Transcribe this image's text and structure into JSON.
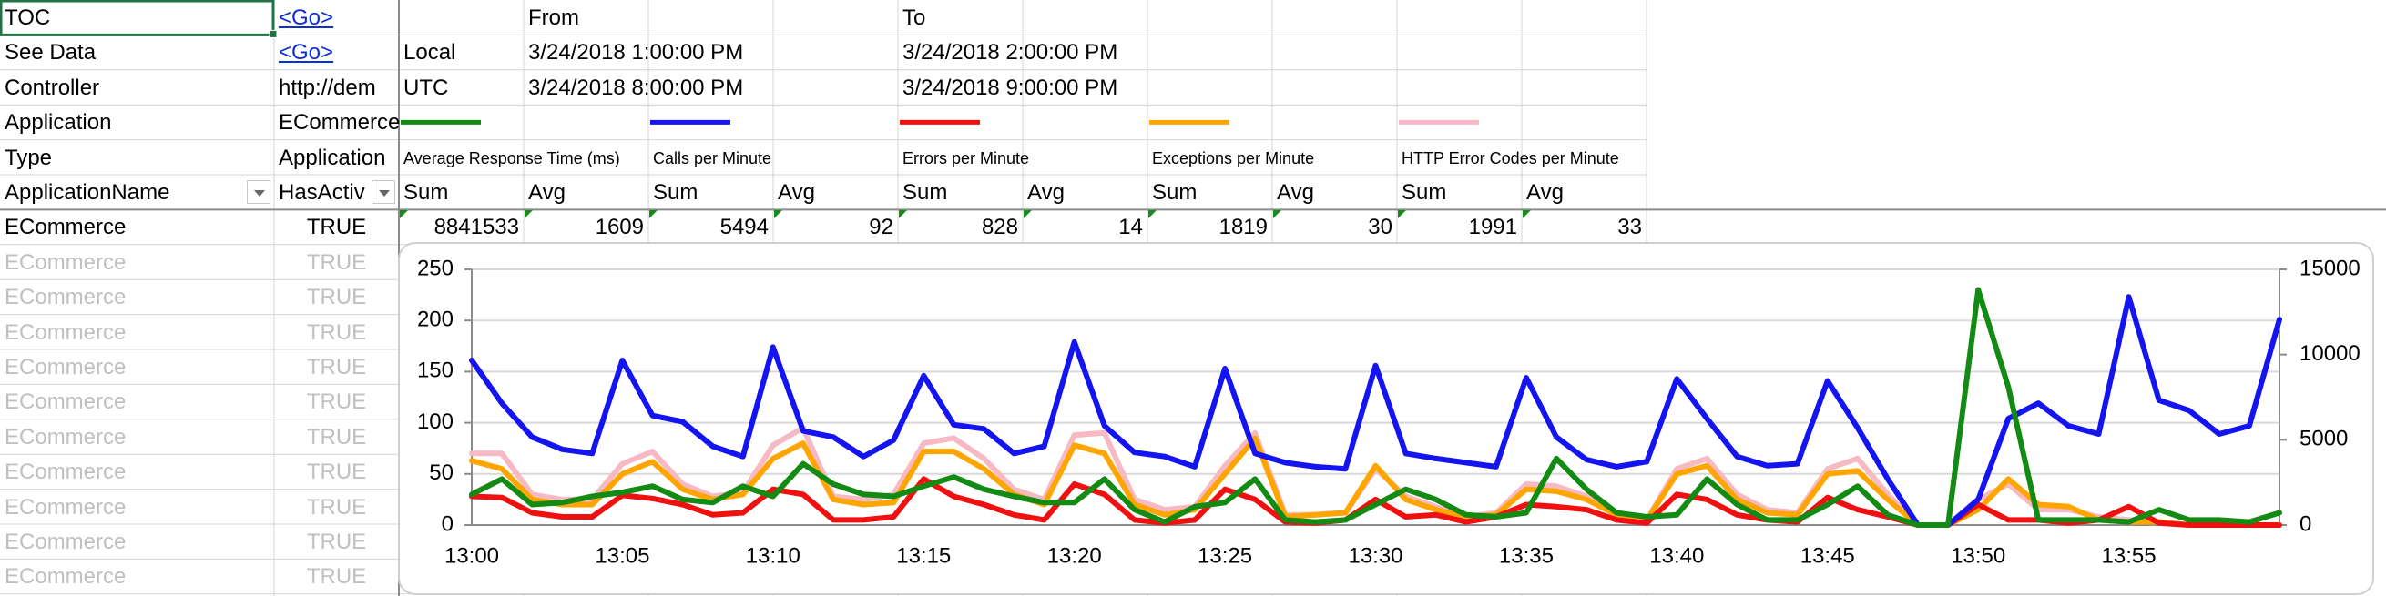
{
  "sheet": {
    "rows": [
      [
        "TOC",
        "<Go>",
        null,
        "From",
        null,
        null,
        "To"
      ],
      [
        "See Data",
        "<Go>",
        "Local",
        "3/24/2018 1:00:00 PM",
        null,
        null,
        "3/24/2018 2:00:00 PM"
      ],
      [
        "Controller",
        "http://dem",
        "UTC",
        "3/24/2018 8:00:00 PM",
        null,
        null,
        "3/24/2018 9:00:00 PM"
      ],
      [
        "Application",
        "ECommerce"
      ],
      [
        "Type",
        "Application"
      ],
      [
        "ApplicationName",
        "HasActiv",
        "Sum",
        "Avg",
        "Sum",
        "Avg",
        "Sum",
        "Avg",
        "Sum",
        "Avg",
        "Sum",
        "Avg"
      ],
      [
        "ECommerce",
        "TRUE",
        8841533,
        1609,
        5494,
        92,
        828,
        14,
        1819,
        30,
        1991,
        33
      ],
      [
        "ECommerce",
        "TRUE"
      ],
      [
        "ECommerce",
        "TRUE"
      ],
      [
        "ECommerce",
        "TRUE"
      ],
      [
        "ECommerce",
        "TRUE"
      ],
      [
        "ECommerce",
        "TRUE"
      ],
      [
        "ECommerce",
        "TRUE"
      ],
      [
        "ECommerce",
        "TRUE"
      ],
      [
        "ECommerce",
        "TRUE"
      ],
      [
        "ECommerce",
        "TRUE"
      ],
      [
        "ECommerce",
        "TRUE"
      ]
    ]
  },
  "chart_data": {
    "type": "line",
    "categories": [
      "13:00",
      null,
      null,
      null,
      null,
      "13:05",
      null,
      null,
      null,
      null,
      "13:10",
      null,
      null,
      null,
      null,
      "13:15",
      null,
      null,
      null,
      null,
      "13:20",
      null,
      null,
      null,
      null,
      "13:25",
      null,
      null,
      null,
      null,
      "13:30",
      null,
      null,
      null,
      null,
      "13:35",
      null,
      null,
      null,
      null,
      "13:40",
      null,
      null,
      null,
      null,
      "13:45",
      null,
      null,
      null,
      null,
      "13:50",
      null,
      null,
      null,
      null,
      "13:55",
      null,
      null,
      null,
      null,
      null
    ],
    "ylim": [
      0,
      250
    ],
    "yticks": [
      0,
      50,
      100,
      150,
      200,
      250
    ],
    "y2lim": [
      0,
      15000
    ],
    "y2ticks": [
      0,
      5000,
      10000,
      15000
    ],
    "grid": true,
    "series": [
      {
        "name": "Average Response Time (ms)",
        "color": "#138a13",
        "axis": "y2",
        "values": [
          1800,
          2700,
          1200,
          1320,
          1680,
          1920,
          2280,
          1500,
          1320,
          2280,
          1680,
          3600,
          2400,
          1800,
          1680,
          2280,
          2820,
          2100,
          1680,
          1320,
          1320,
          2700,
          900,
          180,
          1080,
          1320,
          2700,
          300,
          180,
          300,
          1200,
          2100,
          1500,
          600,
          480,
          720,
          3900,
          2100,
          720,
          480,
          600,
          2700,
          1200,
          300,
          300,
          1200,
          2280,
          600,
          0,
          0,
          13800,
          8100,
          300,
          300,
          300,
          180,
          900,
          300,
          300,
          180,
          720
        ]
      },
      {
        "name": "Calls per Minute",
        "color": "#1414f0",
        "values": [
          161,
          119,
          86,
          74,
          70,
          161,
          107,
          101,
          77,
          67,
          174,
          92,
          86,
          67,
          83,
          146,
          98,
          94,
          70,
          77,
          179,
          97,
          71,
          67,
          57,
          153,
          70,
          61,
          57,
          55,
          156,
          70,
          65,
          61,
          57,
          144,
          86,
          64,
          57,
          62,
          143,
          104,
          67,
          58,
          60,
          141,
          95,
          45,
          0,
          0,
          25,
          104,
          119,
          97,
          89,
          223,
          122,
          112,
          89,
          97,
          201
        ]
      },
      {
        "name": "Errors per Minute",
        "color": "#f01010",
        "values": [
          28,
          27,
          12,
          8,
          8,
          29,
          26,
          20,
          10,
          12,
          35,
          30,
          5,
          5,
          8,
          45,
          28,
          20,
          10,
          5,
          40,
          30,
          5,
          2,
          5,
          35,
          25,
          3,
          2,
          5,
          25,
          8,
          10,
          3,
          8,
          20,
          18,
          15,
          5,
          2,
          30,
          25,
          10,
          5,
          3,
          27,
          15,
          8,
          0,
          0,
          20,
          5,
          5,
          2,
          5,
          18,
          2,
          0,
          0,
          0,
          0
        ]
      },
      {
        "name": "Exceptions per Minute",
        "color": "#ffa500",
        "values": [
          63,
          55,
          25,
          20,
          20,
          50,
          62,
          35,
          25,
          30,
          65,
          80,
          25,
          20,
          22,
          72,
          72,
          55,
          30,
          20,
          78,
          70,
          20,
          10,
          15,
          50,
          85,
          8,
          10,
          12,
          58,
          25,
          15,
          8,
          10,
          35,
          33,
          25,
          10,
          5,
          50,
          58,
          25,
          12,
          10,
          50,
          53,
          25,
          0,
          0,
          15,
          45,
          20,
          18,
          5,
          3,
          3,
          0,
          0,
          0,
          0
        ]
      },
      {
        "name": "HTTP Error Codes per Minute",
        "color": "#f7b9c4",
        "values": [
          70,
          70,
          30,
          25,
          25,
          60,
          72,
          40,
          28,
          32,
          78,
          95,
          28,
          25,
          30,
          80,
          85,
          65,
          35,
          25,
          88,
          90,
          25,
          15,
          18,
          58,
          90,
          10,
          10,
          12,
          55,
          28,
          18,
          8,
          12,
          40,
          38,
          28,
          12,
          5,
          55,
          65,
          30,
          15,
          12,
          55,
          65,
          30,
          0,
          0,
          25,
          40,
          15,
          15,
          8,
          5,
          3,
          0,
          0,
          0,
          0
        ]
      }
    ]
  }
}
